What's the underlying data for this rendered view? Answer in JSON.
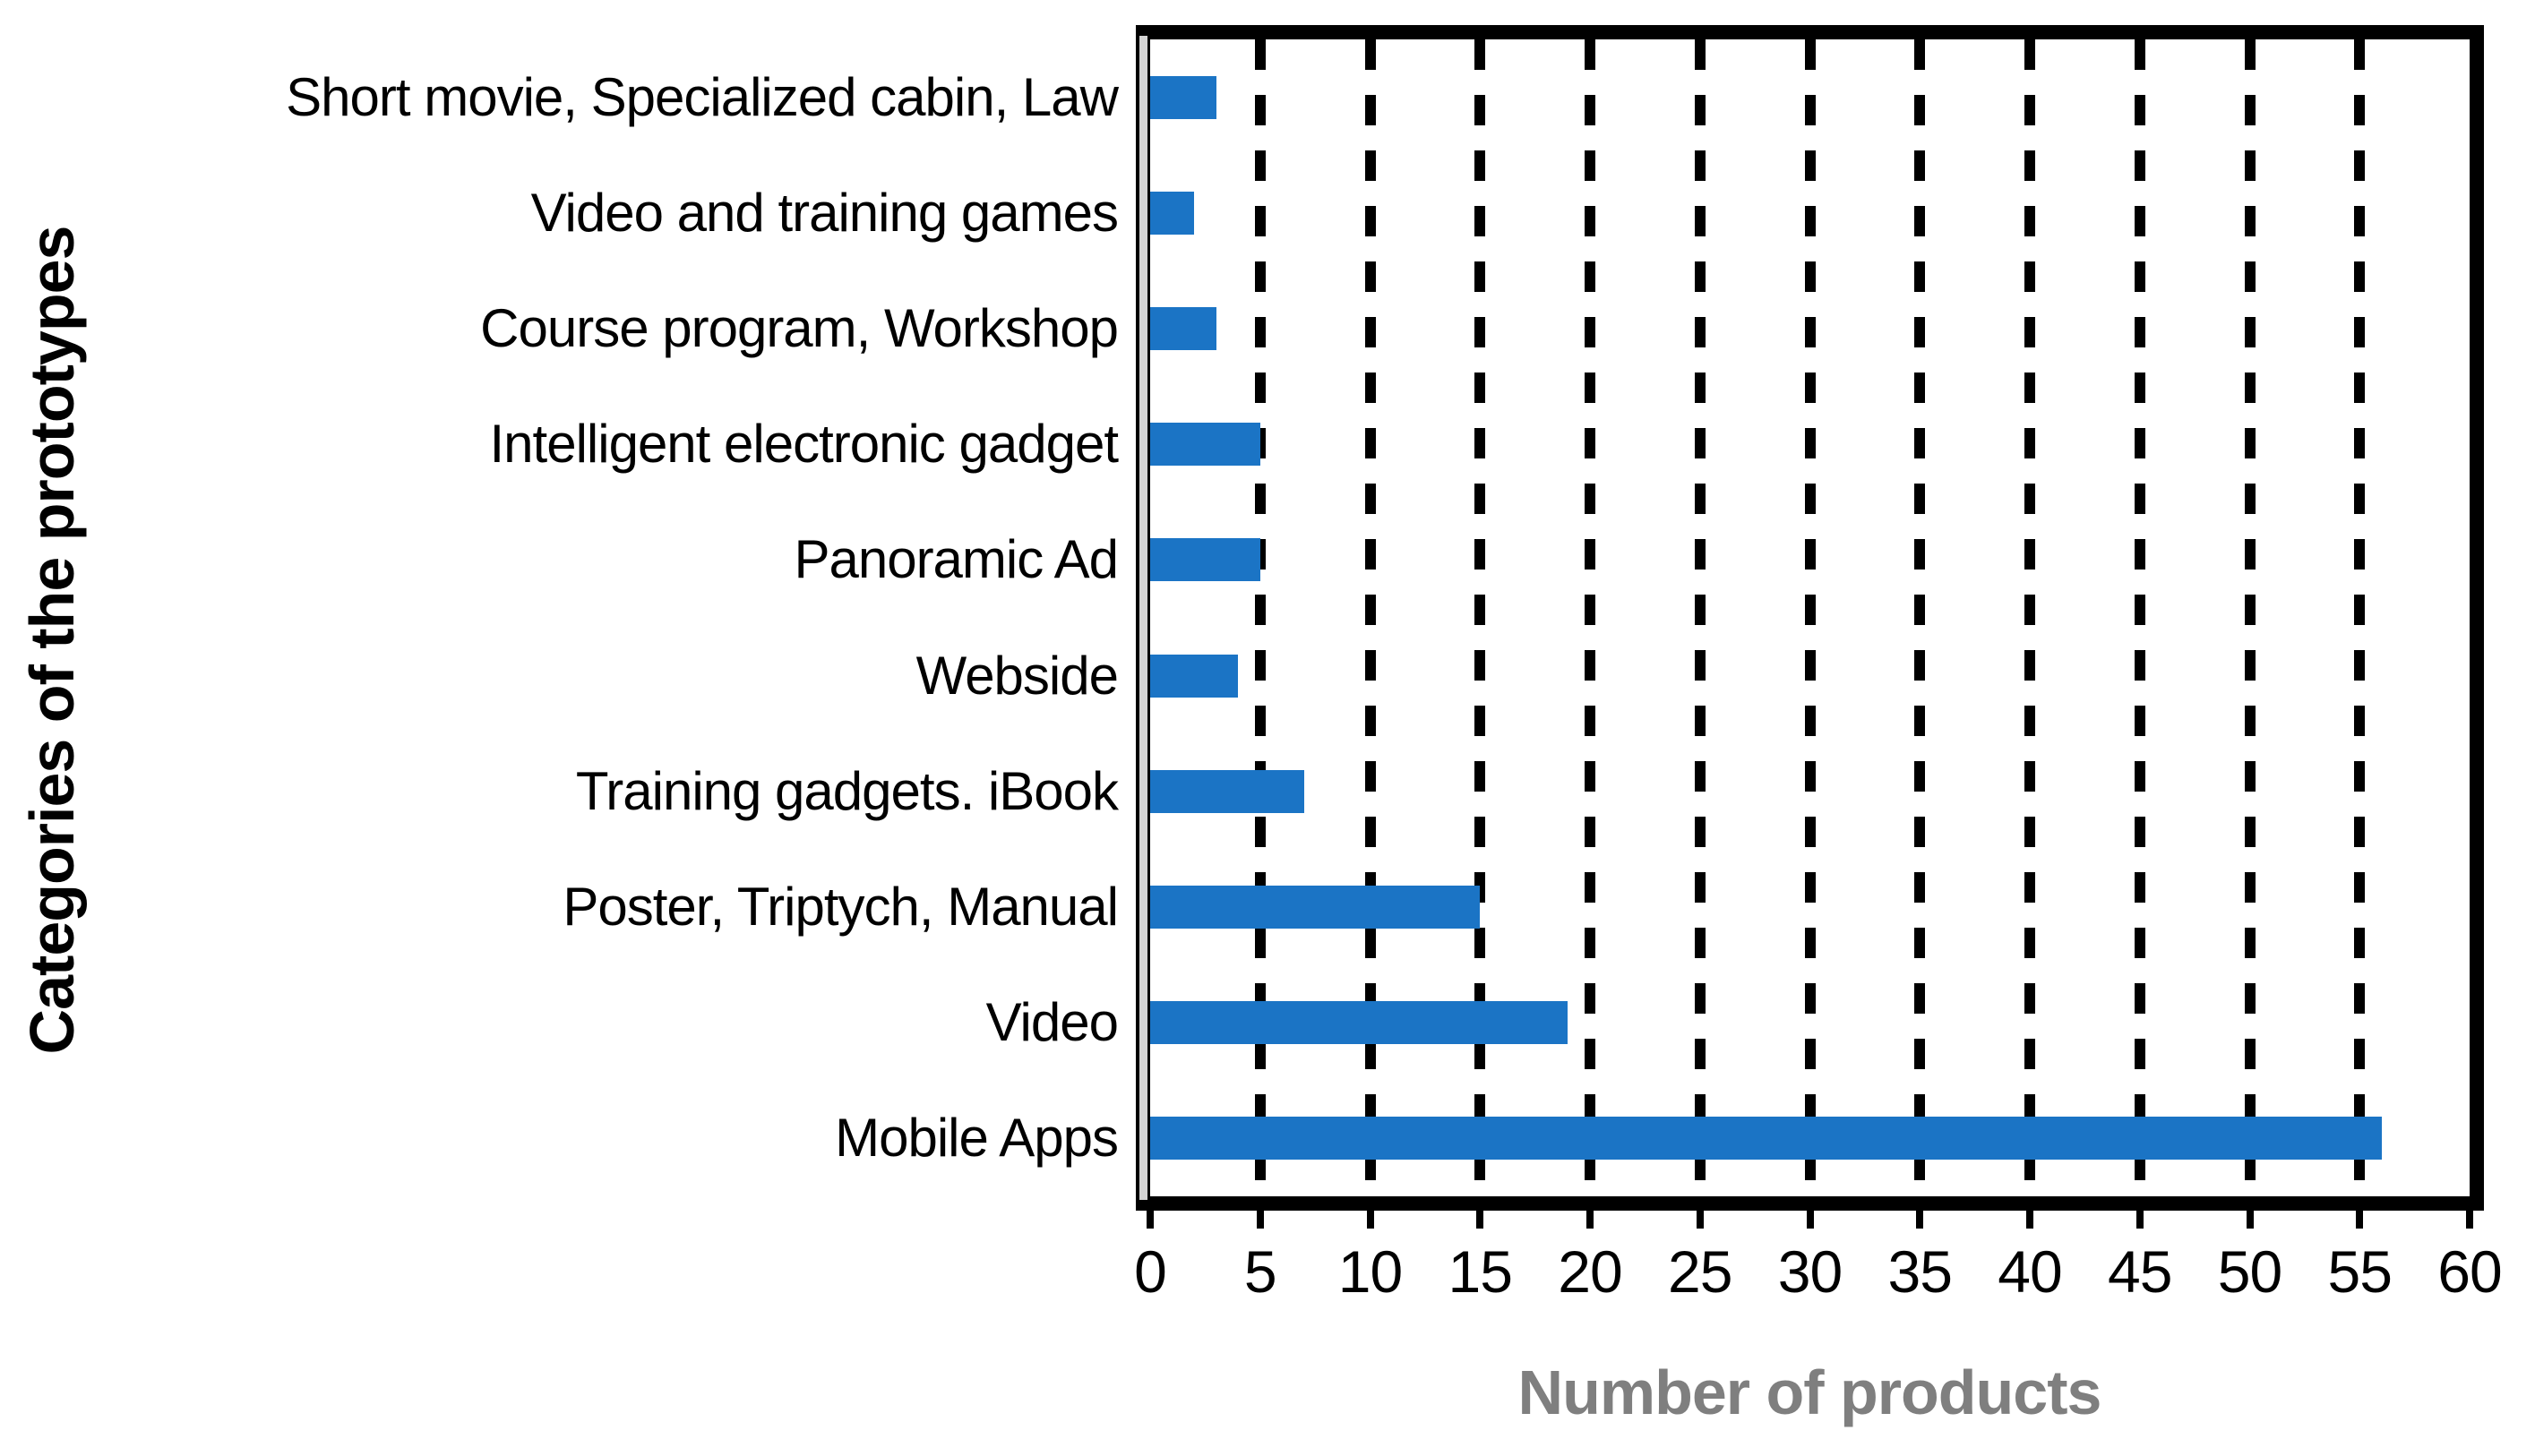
{
  "chart_data": {
    "type": "bar",
    "orientation": "horizontal",
    "title": "",
    "xlabel": "Number of products",
    "ylabel": "Categories of the prototypes",
    "categories": [
      "Short movie, Specialized cabin, Law",
      "Video and training games",
      "Course program, Workshop",
      "Intelligent electronic gadget",
      "Panoramic Ad",
      "Webside",
      "Training gadgets. iBook",
      "Poster, Triptych, Manual",
      "Video",
      "Mobile Apps"
    ],
    "values": [
      3,
      2,
      3,
      5,
      5,
      4,
      7,
      15,
      19,
      56
    ],
    "xlim": [
      0,
      60
    ],
    "xticks": [
      0,
      5,
      10,
      15,
      20,
      25,
      30,
      35,
      40,
      45,
      50,
      55,
      60
    ],
    "grid": "vertical-dashed",
    "legend": "none",
    "colors": {
      "bar": "#1b74c5",
      "plot_border": "#000000",
      "gridline": "#000000",
      "axis_line_gray": "#d4d4d4",
      "xlabel_text": "#7f7f7f",
      "text": "#000000",
      "background": "#ffffff"
    }
  }
}
